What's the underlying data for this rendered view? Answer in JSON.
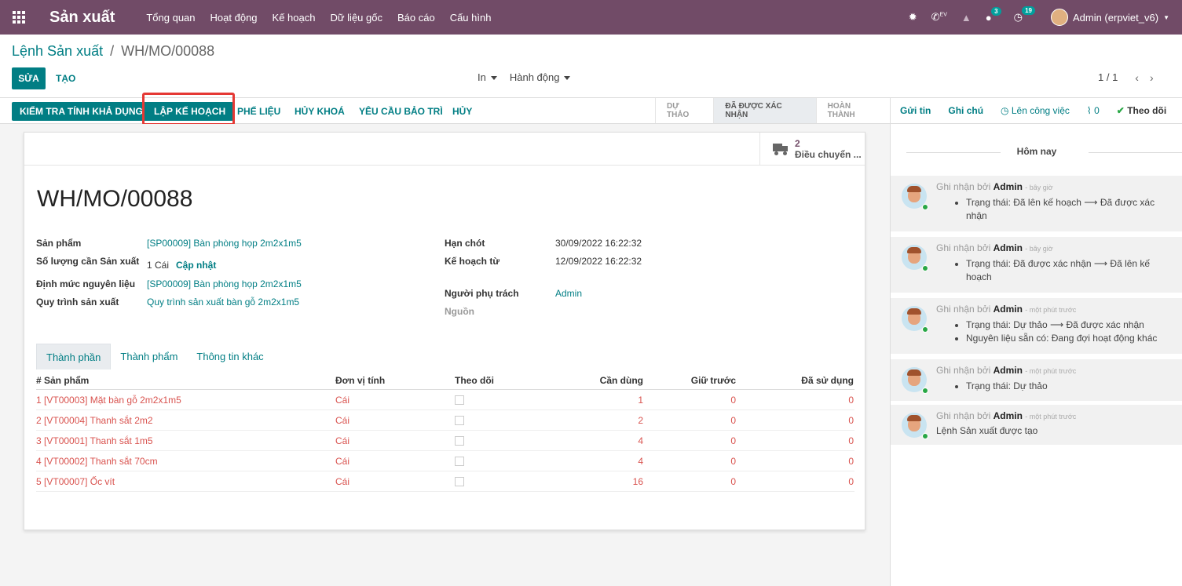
{
  "navbar": {
    "app_name": "Sản xuất",
    "menu": [
      "Tổng quan",
      "Hoạt động",
      "Kế hoạch",
      "Dữ liệu gốc",
      "Báo cáo",
      "Cấu hình"
    ],
    "ev_label": "EV",
    "messages_count": "3",
    "activities_count": "19",
    "user": "Admin (erpviet_v6)"
  },
  "breadcrumb": {
    "parent": "Lệnh Sản xuất",
    "separator": "/",
    "current": "WH/MO/00088"
  },
  "control": {
    "edit": "SỬA",
    "create": "TẠO",
    "print": "In",
    "action": "Hành động",
    "pager": "1 / 1"
  },
  "statusbar": {
    "buttons": [
      "KIỂM TRA TÍNH KHẢ DỤNG",
      "LẬP KẾ HOẠCH",
      "PHẾ LIỆU",
      "HỦY KHOÁ",
      "YÊU CẦU BẢO TRÌ",
      "HỦY"
    ],
    "stages": [
      "DỰ THẢO",
      "ĐÃ ĐƯỢC XÁC NHẬN",
      "HOÀN THÀNH"
    ],
    "active_stage": "ĐÃ ĐƯỢC XÁC NHẬN"
  },
  "chatter_actions": {
    "send": "Gửi tin",
    "note": "Ghi chú",
    "schedule": "Lên công việc",
    "attachments": "0",
    "follow": "Theo dõi"
  },
  "form": {
    "smart_button": {
      "count": "2",
      "label": "Điều chuyển ..."
    },
    "title": "WH/MO/00088",
    "left_fields": {
      "product_label": "Sản phẩm",
      "product_value": "[SP00009] Bàn phòng họp 2m2x1m5",
      "qty_label": "Số lượng cần Sản xuất",
      "qty_value": "1 Cái",
      "qty_update": "Cập nhật",
      "bom_label": "Định mức nguyên liệu",
      "bom_value": "[SP00009] Bàn phòng họp 2m2x1m5",
      "routing_label": "Quy trình sản xuất",
      "routing_value": "Quy trình sản xuất bàn gỗ 2m2x1m5"
    },
    "right_fields": {
      "deadline_label": "Hạn chót",
      "deadline_value": "30/09/2022 16:22:32",
      "planned_label": "Kế hoạch từ",
      "planned_value": "12/09/2022 16:22:32",
      "responsible_label": "Người phụ trách",
      "responsible_value": "Admin",
      "source_label": "Nguồn"
    },
    "tabs": [
      "Thành phần",
      "Thành phẩm",
      "Thông tin khác"
    ],
    "table": {
      "headers": [
        "# Sản phẩm",
        "Đơn vị tính",
        "Theo dõi",
        "Cần dùng",
        "Giữ trước",
        "Đã sử dụng"
      ],
      "rows": [
        {
          "idx": "1",
          "product": "[VT00003] Mặt bàn gỗ 2m2x1m5",
          "uom": "Cái",
          "need": "1",
          "reserved": "0",
          "used": "0"
        },
        {
          "idx": "2",
          "product": "[VT00004] Thanh sắt 2m2",
          "uom": "Cái",
          "need": "2",
          "reserved": "0",
          "used": "0"
        },
        {
          "idx": "3",
          "product": "[VT00001] Thanh sắt 1m5",
          "uom": "Cái",
          "need": "4",
          "reserved": "0",
          "used": "0"
        },
        {
          "idx": "4",
          "product": "[VT00002] Thanh sắt 70cm",
          "uom": "Cái",
          "need": "4",
          "reserved": "0",
          "used": "0"
        },
        {
          "idx": "5",
          "product": "[VT00007] Ốc vít",
          "uom": "Cái",
          "need": "16",
          "reserved": "0",
          "used": "0"
        }
      ]
    }
  },
  "chatter": {
    "today": "Hôm nay",
    "messages": [
      {
        "prefix": "Ghi nhận bởi",
        "author": "Admin",
        "time": "- bây giờ",
        "lines": [
          "Trạng thái: Đã lên kế hoạch ⟶ Đã được xác nhận"
        ]
      },
      {
        "prefix": "Ghi nhận bởi",
        "author": "Admin",
        "time": "- bây giờ",
        "lines": [
          "Trạng thái: Đã được xác nhận ⟶ Đã lên kế hoạch"
        ]
      },
      {
        "prefix": "Ghi nhận bởi",
        "author": "Admin",
        "time": "- một phút trước",
        "lines": [
          "Trạng thái: Dự thảo ⟶ Đã được xác nhận",
          "Nguyên liệu sẵn có: Đang đợi hoạt động khác"
        ]
      },
      {
        "prefix": "Ghi nhận bởi",
        "author": "Admin",
        "time": "- một phút trước",
        "lines": [
          "Trạng thái: Dự thảo"
        ]
      },
      {
        "prefix": "Ghi nhận bởi",
        "author": "Admin",
        "time": "- một phút trước",
        "text": "Lệnh Sản xuất được tạo"
      }
    ]
  }
}
